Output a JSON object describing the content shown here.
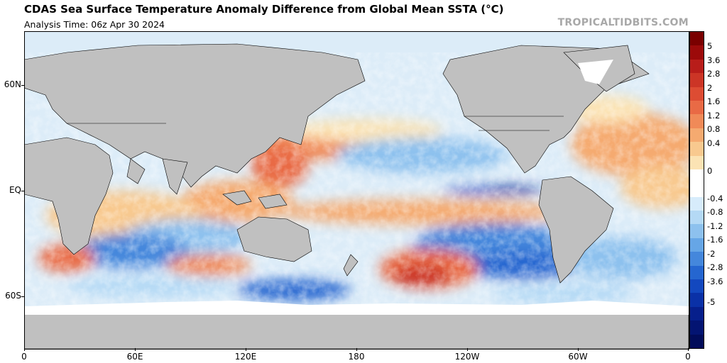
{
  "header": {
    "title": "CDAS Sea Surface Temperature Anomaly Difference from Global Mean SSTA (°C)",
    "subtitle": "Analysis Time: 06z Apr 30 2024",
    "brand": "TROPICALTIDBITS.COM"
  },
  "map": {
    "projection": "equirectangular",
    "lon_range": [
      0,
      360
    ],
    "lat_range": [
      -78,
      90
    ],
    "land_color": "#c0c0c0",
    "ice_color": "#ffffff",
    "lat_labels": [
      "60N",
      "EQ",
      "60S"
    ],
    "lon_labels": [
      "0",
      "60E",
      "120E",
      "180",
      "120W",
      "60W",
      "0"
    ]
  },
  "colorbar": {
    "labels": [
      "5",
      "3.6",
      "2.8",
      "2",
      "1.6",
      "1.2",
      "0.8",
      "0.4",
      "0",
      "-0.4",
      "-0.8",
      "-1.2",
      "-1.6",
      "-2",
      "-2.8",
      "-3.6",
      "-5"
    ],
    "colors": [
      "#7a0000",
      "#9c0a0a",
      "#b81d1a",
      "#cc3526",
      "#dd4c33",
      "#e96a45",
      "#f08a58",
      "#f5aa70",
      "#f8c98f",
      "#fbe3b4",
      "#ffffff",
      "#ffffff",
      "#d7ecfb",
      "#b4d9f5",
      "#8dc1ee",
      "#66a6e6",
      "#4487dc",
      "#2566d0",
      "#1348bf",
      "#0a31a7",
      "#061f8c",
      "#031472",
      "#010c5a"
    ]
  }
}
